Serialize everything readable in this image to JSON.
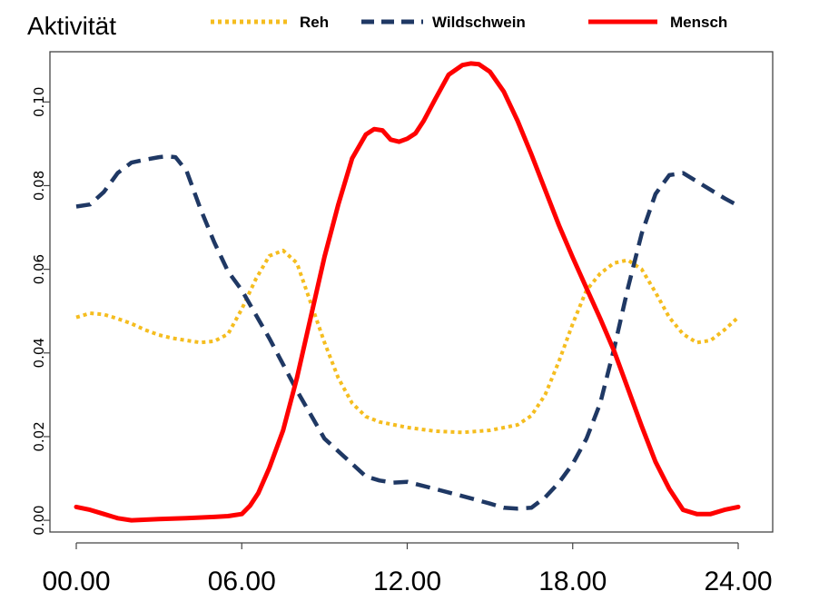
{
  "chart_data": {
    "type": "line",
    "ylabel": "Aktivität",
    "xlabel": "",
    "xlim": [
      0,
      24
    ],
    "ylim": [
      -0.0028,
      0.112
    ],
    "x_ticks": [
      0,
      6,
      12,
      18,
      24
    ],
    "x_tick_labels": [
      "00.00",
      "06.00",
      "12.00",
      "18.00",
      "24.00"
    ],
    "y_ticks": [
      0.0,
      0.02,
      0.04,
      0.06,
      0.08,
      0.1
    ],
    "y_tick_labels": [
      "0.00",
      "0.02",
      "0.04",
      "0.06",
      "0.08",
      "0.10"
    ],
    "legend_position": "top",
    "series": [
      {
        "name": "Reh",
        "color": "#f5bd1f",
        "style": "dotted",
        "x": [
          0,
          0.5,
          1,
          1.5,
          2,
          2.5,
          3,
          3.5,
          4,
          4.5,
          5,
          5.5,
          6,
          6.5,
          7,
          7.5,
          8,
          8.5,
          9,
          9.5,
          10,
          10.5,
          11,
          12,
          13,
          14,
          15,
          16,
          16.5,
          17,
          17.5,
          18,
          18.5,
          19,
          19.5,
          20,
          20.5,
          21,
          21.5,
          22,
          22.5,
          23,
          23.5,
          24
        ],
        "y": [
          0.0485,
          0.0495,
          0.0492,
          0.0482,
          0.047,
          0.0455,
          0.0443,
          0.0435,
          0.043,
          0.0425,
          0.0428,
          0.0445,
          0.0505,
          0.0575,
          0.0632,
          0.0645,
          0.0615,
          0.052,
          0.0425,
          0.034,
          0.028,
          0.0248,
          0.0235,
          0.0222,
          0.0213,
          0.021,
          0.0215,
          0.0228,
          0.025,
          0.03,
          0.038,
          0.047,
          0.055,
          0.059,
          0.0615,
          0.0622,
          0.06,
          0.0545,
          0.0485,
          0.0445,
          0.0425,
          0.043,
          0.0455,
          0.0485
        ]
      },
      {
        "name": "Wildschwein",
        "color": "#1f3864",
        "style": "dashed",
        "x": [
          0,
          0.5,
          1,
          1.5,
          2,
          2.5,
          3,
          3.3,
          3.6,
          4,
          4.5,
          5,
          5.5,
          6,
          7,
          8,
          9,
          10,
          10.5,
          11,
          11.5,
          12,
          13,
          14,
          15,
          15.5,
          16,
          16.5,
          17,
          17.5,
          18,
          18.5,
          19,
          19.5,
          20,
          20.5,
          21,
          21.5,
          22,
          22.5,
          23,
          23.5,
          24
        ],
        "y": [
          0.075,
          0.0755,
          0.0785,
          0.083,
          0.0855,
          0.0862,
          0.0868,
          0.087,
          0.0868,
          0.0835,
          0.0745,
          0.0665,
          0.0595,
          0.055,
          0.0435,
          0.031,
          0.0195,
          0.0135,
          0.0105,
          0.0095,
          0.009,
          0.0092,
          0.0075,
          0.0058,
          0.004,
          0.003,
          0.0028,
          0.003,
          0.0055,
          0.009,
          0.0135,
          0.0195,
          0.028,
          0.041,
          0.0555,
          0.0685,
          0.078,
          0.0825,
          0.083,
          0.081,
          0.079,
          0.077,
          0.0752
        ]
      },
      {
        "name": "Mensch",
        "color": "#ff0000",
        "style": "solid",
        "x": [
          0,
          0.5,
          1,
          1.5,
          2,
          3,
          4,
          5,
          5.5,
          6,
          6.3,
          6.6,
          7,
          7.5,
          8,
          8.5,
          9,
          9.5,
          10,
          10.5,
          10.8,
          11.1,
          11.4,
          11.7,
          12,
          12.3,
          12.6,
          13,
          13.5,
          14,
          14.3,
          14.6,
          15,
          15.5,
          16,
          16.5,
          17,
          17.5,
          18,
          18.5,
          19,
          19.5,
          20,
          20.5,
          21,
          21.5,
          22,
          22.5,
          23,
          23.5,
          24
        ],
        "y": [
          0.0032,
          0.0025,
          0.0015,
          0.0005,
          0,
          0.0003,
          0.0005,
          0.0008,
          0.001,
          0.0015,
          0.0035,
          0.0065,
          0.0125,
          0.0215,
          0.034,
          0.0485,
          0.063,
          0.0755,
          0.0865,
          0.0922,
          0.0935,
          0.0932,
          0.091,
          0.0905,
          0.0912,
          0.0925,
          0.0955,
          0.1005,
          0.1065,
          0.1088,
          0.1092,
          0.109,
          0.1072,
          0.1025,
          0.0955,
          0.0875,
          0.079,
          0.0705,
          0.0628,
          0.0555,
          0.0482,
          0.0405,
          0.0315,
          0.0225,
          0.014,
          0.0075,
          0.0025,
          0.0015,
          0.0015,
          0.0025,
          0.0032
        ]
      }
    ]
  }
}
